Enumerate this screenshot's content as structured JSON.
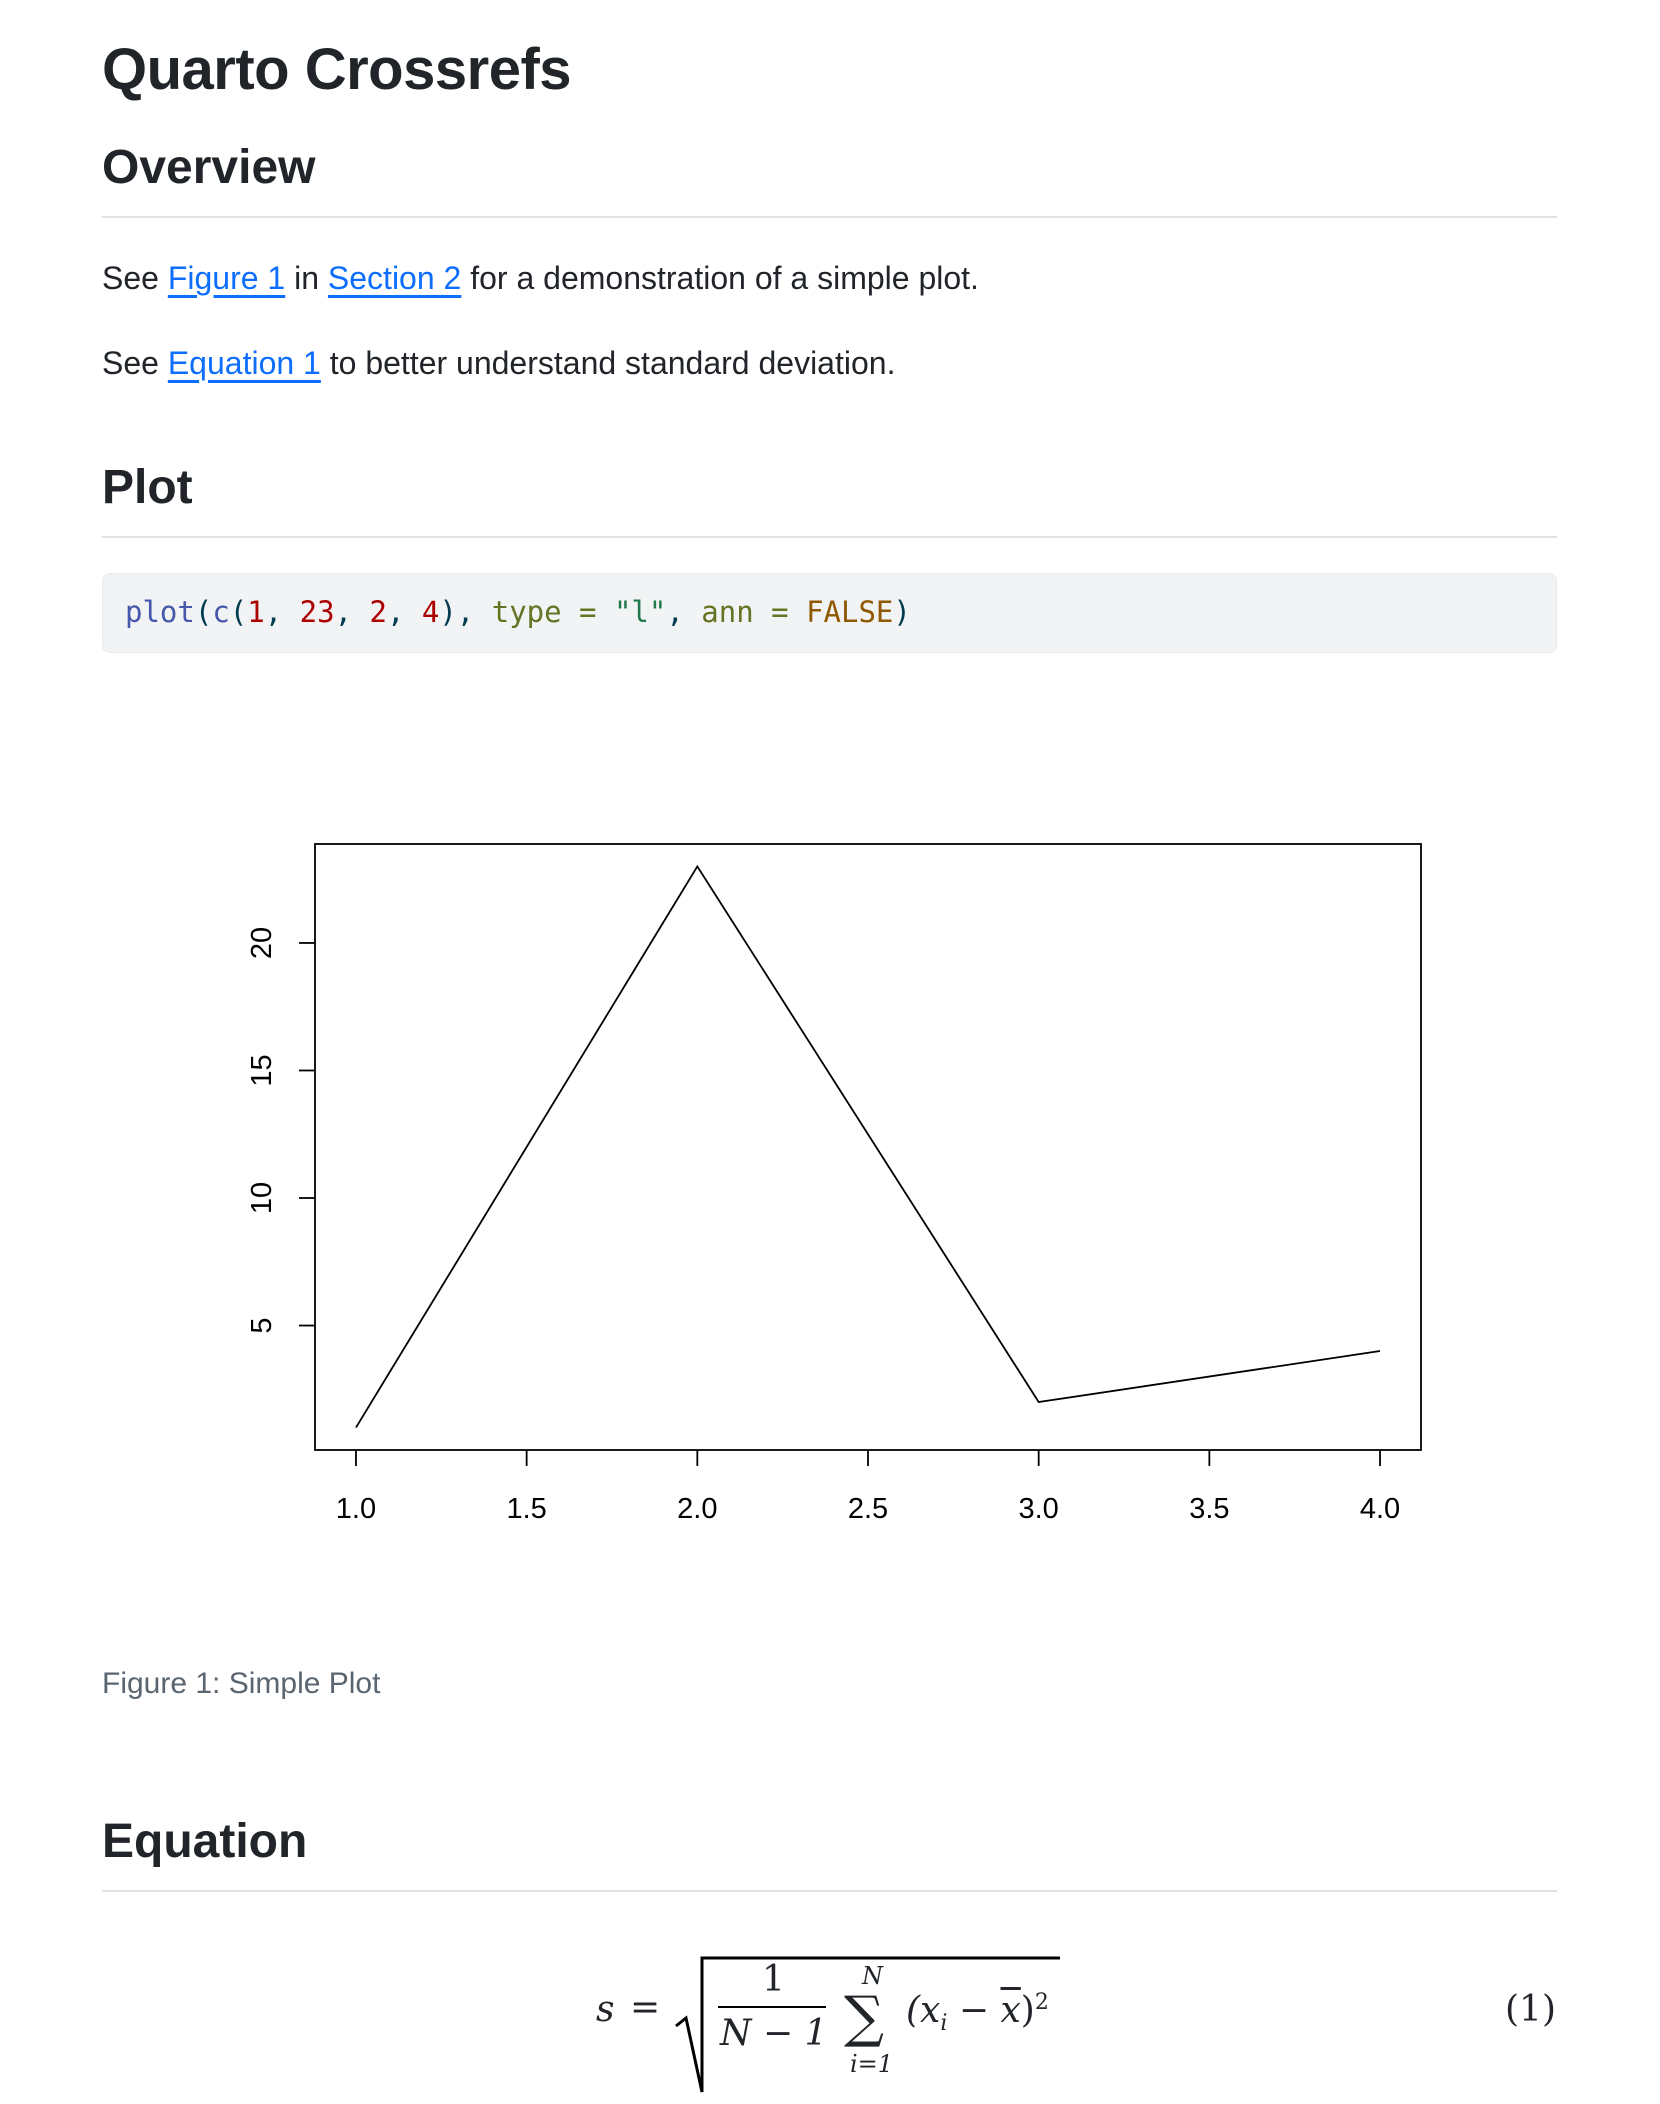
{
  "title": "Quarto Crossrefs",
  "sections": {
    "overview": {
      "heading": "Overview",
      "para1": {
        "pre": "See ",
        "link1": "Figure 1",
        "mid": " in ",
        "link2": "Section 2",
        "post": " for a demonstration of a simple plot."
      },
      "para2": {
        "pre": "See ",
        "link1": "Equation 1",
        "post": " to better understand standard deviation."
      }
    },
    "plot": {
      "heading": "Plot",
      "code": {
        "fn": "plot",
        "c": "c",
        "n1": "1",
        "n2": "23",
        "n3": "2",
        "n4": "4",
        "arg1": "type",
        "str": "\"l\"",
        "arg2": "ann",
        "const": "FALSE"
      },
      "caption": "Figure 1: Simple Plot"
    },
    "equation": {
      "heading": "Equation",
      "lhs": "s",
      "numerator": "1",
      "denominator": "N − 1",
      "sum_upper": "N",
      "sum_lower": "i=1",
      "body": "(x",
      "sub": "i",
      "minus": " − ",
      "xbar": "x",
      "close": ")",
      "power": "2",
      "number": "(1)"
    }
  },
  "chart_data": {
    "type": "line",
    "x": [
      1,
      2,
      3,
      4
    ],
    "y": [
      1,
      23,
      2,
      4
    ],
    "xlim": [
      0.88,
      4.12
    ],
    "ylim": [
      0.12,
      23.88
    ],
    "xticks": [
      "1.0",
      "1.5",
      "2.0",
      "2.5",
      "3.0",
      "3.5",
      "4.0"
    ],
    "yticks": [
      "5",
      "10",
      "15",
      "20"
    ],
    "title": "",
    "xlabel": "",
    "ylabel": "",
    "grid": false,
    "line_color": "#000000"
  }
}
